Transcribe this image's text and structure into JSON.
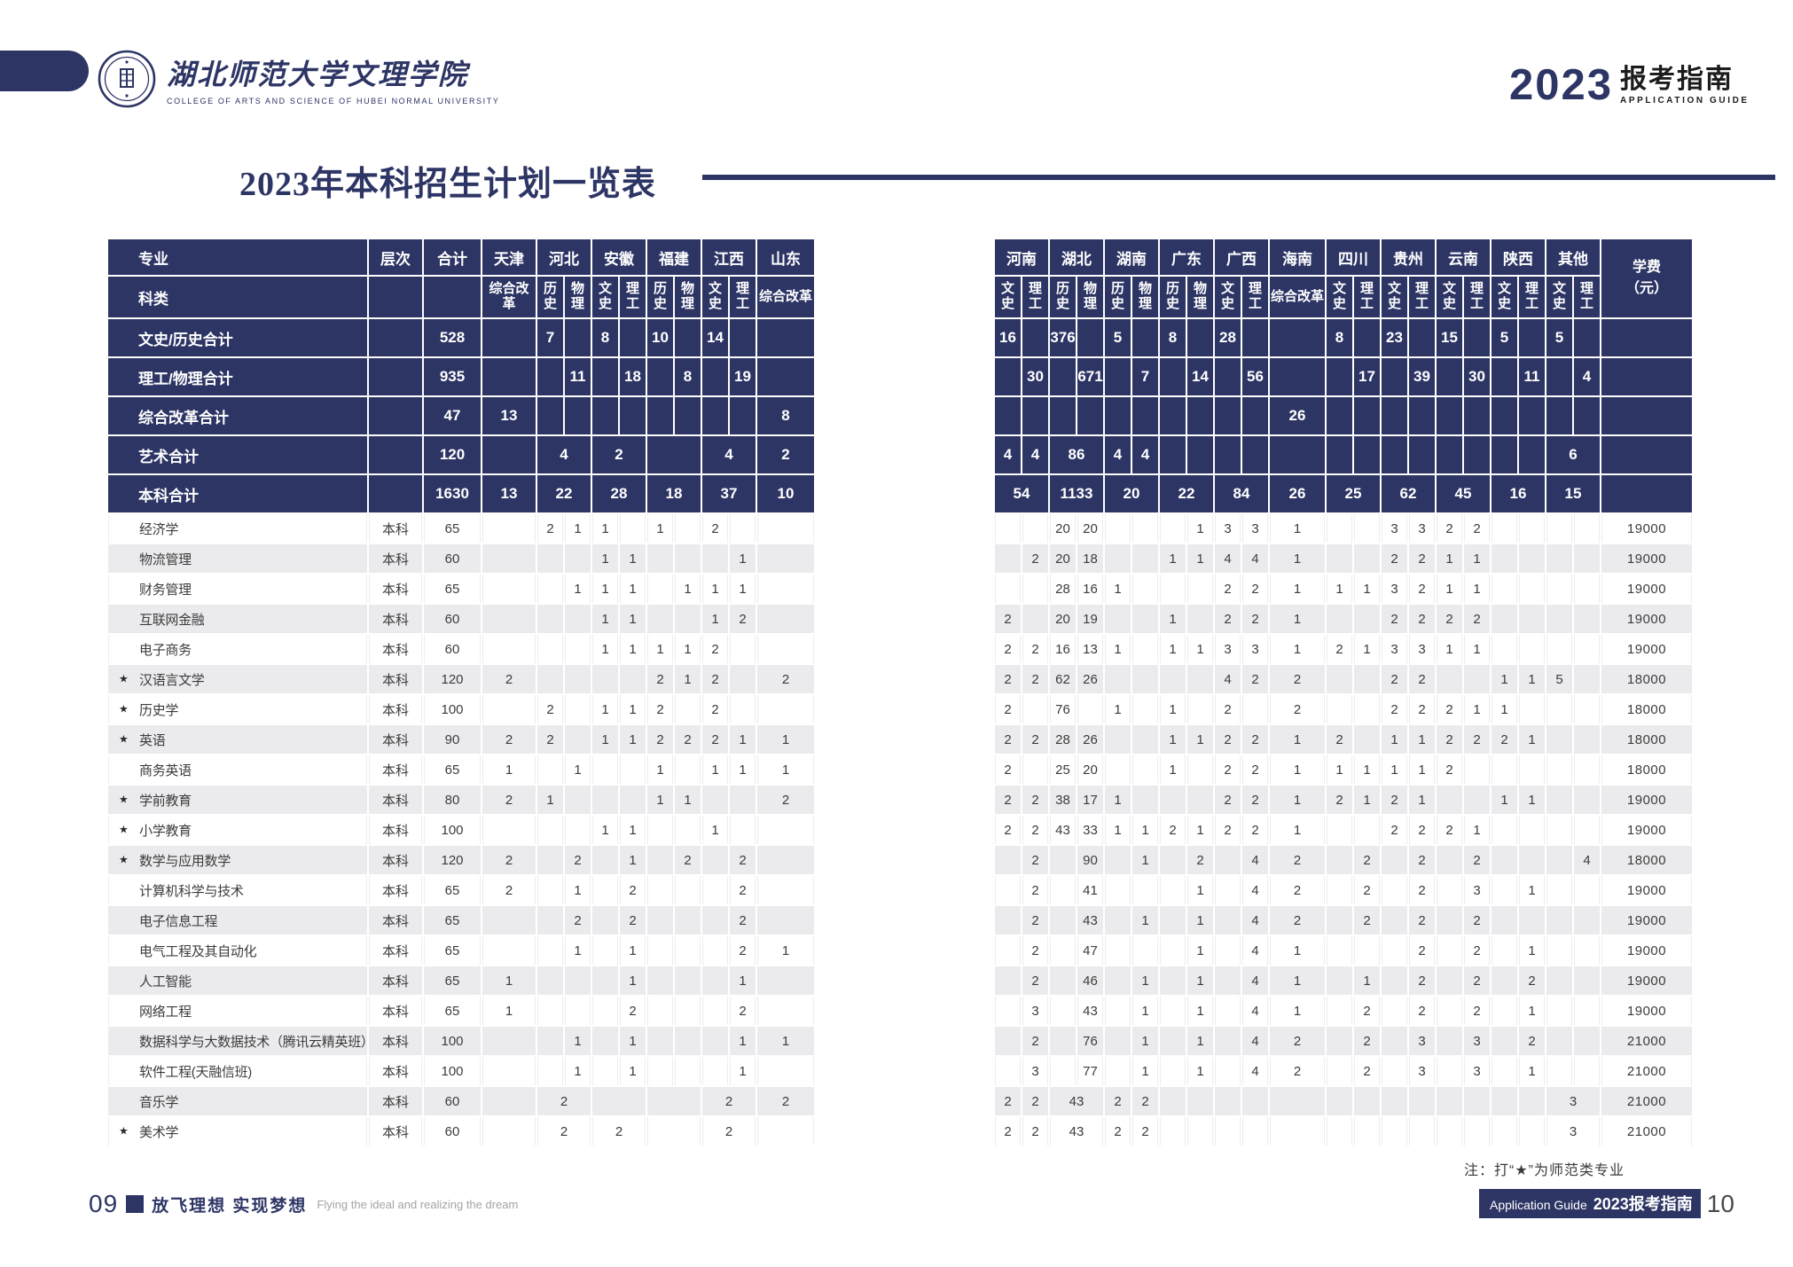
{
  "colors": {
    "navy": "#2d3565",
    "row_gray": "#ebebee",
    "row_white": "#ffffff"
  },
  "header": {
    "logo_cn": "湖北师范大学文理学院",
    "logo_en": "COLLEGE OF ARTS AND SCIENCE OF HUBEI NORMAL UNIVERSITY",
    "year": "2023",
    "guide_cn": "报考指南",
    "guide_en": "APPLICATION  GUIDE"
  },
  "title": {
    "text": "2023年本科招生计划一览表"
  },
  "left_table": {
    "major_header": "专业",
    "category_header": "科类",
    "level_header": "层次",
    "total_header": "合计",
    "provinces": [
      {
        "name": "天津",
        "cols": [
          "综合改革"
        ]
      },
      {
        "name": "河北",
        "cols": [
          "历史",
          "物理"
        ]
      },
      {
        "name": "安徽",
        "cols": [
          "文史",
          "理工"
        ]
      },
      {
        "name": "福建",
        "cols": [
          "历史",
          "物理"
        ]
      },
      {
        "name": "江西",
        "cols": [
          "文史",
          "理工"
        ]
      },
      {
        "name": "山东",
        "cols": [
          "综合改革"
        ]
      }
    ],
    "summary_rows": [
      {
        "label": "文史/历史合计",
        "total": "528",
        "cells": [
          "",
          "7",
          "",
          "8",
          "",
          "10",
          "",
          "14",
          "",
          ""
        ]
      },
      {
        "label": "理工/物理合计",
        "total": "935",
        "cells": [
          "",
          "",
          "11",
          "",
          "18",
          "",
          "8",
          "",
          "19",
          ""
        ]
      },
      {
        "label": "综合改革合计",
        "total": "47",
        "cells": [
          "13",
          "",
          "",
          "",
          "",
          "",
          "",
          "",
          "",
          "8"
        ]
      },
      {
        "label": "艺术合计",
        "total": "120",
        "cells": [
          "",
          [
            "4",
            2
          ],
          [
            "2",
            2
          ],
          [
            "",
            2
          ],
          [
            "4",
            2
          ],
          "2"
        ]
      },
      {
        "label": "本科合计",
        "total": "1630",
        "cells": [
          "13",
          [
            "22",
            2
          ],
          [
            "28",
            2
          ],
          [
            "18",
            2
          ],
          [
            "37",
            2
          ],
          "10"
        ]
      }
    ]
  },
  "right_table": {
    "provinces": [
      {
        "name": "河南",
        "cols": [
          "文史",
          "理工"
        ]
      },
      {
        "name": "湖北",
        "cols": [
          "历史",
          "物理"
        ]
      },
      {
        "name": "湖南",
        "cols": [
          "历史",
          "物理"
        ]
      },
      {
        "name": "广东",
        "cols": [
          "历史",
          "物理"
        ]
      },
      {
        "name": "广西",
        "cols": [
          "文史",
          "理工"
        ]
      },
      {
        "name": "海南",
        "cols": [
          "综合改革"
        ]
      },
      {
        "name": "四川",
        "cols": [
          "文史",
          "理工"
        ]
      },
      {
        "name": "贵州",
        "cols": [
          "文史",
          "理工"
        ]
      },
      {
        "name": "云南",
        "cols": [
          "文史",
          "理工"
        ]
      },
      {
        "name": "陕西",
        "cols": [
          "文史",
          "理工"
        ]
      },
      {
        "name": "其他",
        "cols": [
          "文史",
          "理工"
        ]
      }
    ],
    "fee_header": [
      "学费",
      "（元）"
    ],
    "summary_rows": [
      {
        "cells": [
          "16",
          "",
          "376",
          "",
          "5",
          "",
          "8",
          "",
          "28",
          "",
          "",
          "8",
          "",
          "23",
          "",
          "15",
          "",
          "5",
          "",
          "5",
          ""
        ],
        "fee": ""
      },
      {
        "cells": [
          "",
          "30",
          "",
          "671",
          "",
          "7",
          "",
          "14",
          "",
          "56",
          "",
          "",
          "17",
          "",
          "39",
          "",
          "30",
          "",
          "11",
          "",
          "4"
        ],
        "fee": ""
      },
      {
        "cells": [
          "",
          "",
          "",
          "",
          "",
          "",
          "",
          "",
          "",
          "",
          "26",
          "",
          "",
          "",
          "",
          "",
          "",
          "",
          "",
          "",
          ""
        ],
        "fee": ""
      },
      {
        "cells": [
          "4",
          "4",
          [
            "86",
            2
          ],
          "4",
          "4",
          "",
          "",
          "",
          "",
          "",
          "",
          "",
          "",
          "",
          "",
          "",
          "",
          "",
          [
            "6",
            2
          ]
        ],
        "fee": ""
      },
      {
        "cells": [
          [
            "54",
            2
          ],
          [
            "1133",
            2
          ],
          [
            "20",
            2
          ],
          [
            "22",
            2
          ],
          [
            "84",
            2
          ],
          "26",
          [
            "25",
            2
          ],
          [
            "62",
            2
          ],
          [
            "45",
            2
          ],
          [
            "16",
            2
          ],
          [
            "15",
            2
          ]
        ],
        "fee": ""
      }
    ]
  },
  "majors": [
    {
      "star": false,
      "name": "经济学",
      "level": "本科",
      "total": "65",
      "left": [
        "",
        "2",
        "1",
        "1",
        "",
        "1",
        "",
        "2",
        "",
        ""
      ],
      "right": [
        "",
        "",
        "20",
        "20",
        "",
        "",
        "",
        "1",
        "3",
        "3",
        "1",
        "",
        "",
        "3",
        "3",
        "2",
        "2",
        "",
        "",
        "",
        ""
      ],
      "fee": "19000"
    },
    {
      "star": false,
      "name": "物流管理",
      "level": "本科",
      "total": "60",
      "left": [
        "",
        "",
        "",
        "1",
        "1",
        "",
        "",
        "",
        "1",
        ""
      ],
      "right": [
        "",
        "2",
        "20",
        "18",
        "",
        "",
        "1",
        "1",
        "4",
        "4",
        "1",
        "",
        "",
        "2",
        "2",
        "1",
        "1",
        "",
        "",
        "",
        ""
      ],
      "fee": "19000"
    },
    {
      "star": false,
      "name": "财务管理",
      "level": "本科",
      "total": "65",
      "left": [
        "",
        "",
        "1",
        "1",
        "1",
        "",
        "1",
        "1",
        "1",
        ""
      ],
      "right": [
        "",
        "",
        "28",
        "16",
        "1",
        "",
        "",
        "",
        "2",
        "2",
        "1",
        "1",
        "1",
        "3",
        "2",
        "1",
        "1",
        "",
        "",
        "",
        ""
      ],
      "fee": "19000"
    },
    {
      "star": false,
      "name": "互联网金融",
      "level": "本科",
      "total": "60",
      "left": [
        "",
        "",
        "",
        "1",
        "1",
        "",
        "",
        "1",
        "2",
        ""
      ],
      "right": [
        "2",
        "",
        "20",
        "19",
        "",
        "",
        "1",
        "",
        "2",
        "2",
        "1",
        "",
        "",
        "2",
        "2",
        "2",
        "2",
        "",
        "",
        "",
        ""
      ],
      "fee": "19000"
    },
    {
      "star": false,
      "name": "电子商务",
      "level": "本科",
      "total": "60",
      "left": [
        "",
        "",
        "",
        "1",
        "1",
        "1",
        "1",
        "2",
        "",
        ""
      ],
      "right": [
        "2",
        "2",
        "16",
        "13",
        "1",
        "",
        "1",
        "1",
        "3",
        "3",
        "1",
        "2",
        "1",
        "3",
        "3",
        "1",
        "1",
        "",
        "",
        "",
        ""
      ],
      "fee": "19000"
    },
    {
      "star": true,
      "name": "汉语言文学",
      "level": "本科",
      "total": "120",
      "left": [
        "2",
        "",
        "",
        "",
        "",
        "2",
        "1",
        "2",
        "",
        "2"
      ],
      "right": [
        "2",
        "2",
        "62",
        "26",
        "",
        "",
        "",
        "",
        "4",
        "2",
        "2",
        "",
        "",
        "2",
        "2",
        "",
        "",
        "1",
        "1",
        "5",
        ""
      ],
      "fee": "18000"
    },
    {
      "star": true,
      "name": "历史学",
      "level": "本科",
      "total": "100",
      "left": [
        "",
        "2",
        "",
        "1",
        "1",
        "2",
        "",
        "2",
        "",
        ""
      ],
      "right": [
        "2",
        "",
        "76",
        "",
        "1",
        "",
        "1",
        "",
        "2",
        "",
        "2",
        "",
        "",
        "2",
        "2",
        "2",
        "1",
        "1",
        "",
        "",
        ""
      ],
      "fee": "18000"
    },
    {
      "star": true,
      "name": "英语",
      "level": "本科",
      "total": "90",
      "left": [
        "2",
        "2",
        "",
        "1",
        "1",
        "2",
        "2",
        "2",
        "1",
        "1"
      ],
      "right": [
        "2",
        "2",
        "28",
        "26",
        "",
        "",
        "1",
        "1",
        "2",
        "2",
        "1",
        "2",
        "",
        "1",
        "1",
        "2",
        "2",
        "2",
        "1",
        "",
        ""
      ],
      "fee": "18000"
    },
    {
      "star": false,
      "name": "商务英语",
      "level": "本科",
      "total": "65",
      "left": [
        "1",
        "",
        "1",
        "",
        "",
        "1",
        "",
        "1",
        "1",
        "1"
      ],
      "right": [
        "2",
        "",
        "25",
        "20",
        "",
        "",
        "1",
        "",
        "2",
        "2",
        "1",
        "1",
        "1",
        "1",
        "1",
        "2",
        "",
        "",
        "",
        "",
        ""
      ],
      "fee": "18000"
    },
    {
      "star": true,
      "name": "学前教育",
      "level": "本科",
      "total": "80",
      "left": [
        "2",
        "1",
        "",
        "",
        "",
        "1",
        "1",
        "",
        "",
        "2"
      ],
      "right": [
        "2",
        "2",
        "38",
        "17",
        "1",
        "",
        "",
        "",
        "2",
        "2",
        "1",
        "2",
        "1",
        "2",
        "1",
        "",
        "",
        "1",
        "1",
        "",
        ""
      ],
      "fee": "19000"
    },
    {
      "star": true,
      "name": "小学教育",
      "level": "本科",
      "total": "100",
      "left": [
        "",
        "",
        "",
        "1",
        "1",
        "",
        "",
        "1",
        "",
        ""
      ],
      "right": [
        "2",
        "2",
        "43",
        "33",
        "1",
        "1",
        "2",
        "1",
        "2",
        "2",
        "1",
        "",
        "",
        "2",
        "2",
        "2",
        "1",
        "",
        "",
        "",
        ""
      ],
      "fee": "19000"
    },
    {
      "star": true,
      "name": "数学与应用数学",
      "level": "本科",
      "total": "120",
      "left": [
        "2",
        "",
        "2",
        "",
        "1",
        "",
        "2",
        "",
        "2",
        ""
      ],
      "right": [
        "",
        "2",
        "",
        "90",
        "",
        "1",
        "",
        "2",
        "",
        "4",
        "2",
        "",
        "2",
        "",
        "2",
        "",
        "2",
        "",
        "",
        "",
        "4"
      ],
      "fee": "18000"
    },
    {
      "star": false,
      "name": "计算机科学与技术",
      "level": "本科",
      "total": "65",
      "left": [
        "2",
        "",
        "1",
        "",
        "2",
        "",
        "",
        "",
        "2",
        ""
      ],
      "right": [
        "",
        "2",
        "",
        "41",
        "",
        "",
        "",
        "1",
        "",
        "4",
        "2",
        "",
        "2",
        "",
        "2",
        "",
        "3",
        "",
        "1",
        "",
        ""
      ],
      "fee": "19000"
    },
    {
      "star": false,
      "name": "电子信息工程",
      "level": "本科",
      "total": "65",
      "left": [
        "",
        "",
        "2",
        "",
        "2",
        "",
        "",
        "",
        "2",
        ""
      ],
      "right": [
        "",
        "2",
        "",
        "43",
        "",
        "1",
        "",
        "1",
        "",
        "4",
        "2",
        "",
        "2",
        "",
        "2",
        "",
        "2",
        "",
        "",
        "",
        ""
      ],
      "fee": "19000"
    },
    {
      "star": false,
      "name": "电气工程及其自动化",
      "level": "本科",
      "total": "65",
      "left": [
        "",
        "",
        "1",
        "",
        "1",
        "",
        "",
        "",
        "2",
        "1"
      ],
      "right": [
        "",
        "2",
        "",
        "47",
        "",
        "",
        "",
        "1",
        "",
        "4",
        "1",
        "",
        "",
        "",
        "2",
        "",
        "2",
        "",
        "1",
        "",
        ""
      ],
      "fee": "19000"
    },
    {
      "star": false,
      "name": "人工智能",
      "level": "本科",
      "total": "65",
      "left": [
        "1",
        "",
        "",
        "",
        "1",
        "",
        "",
        "",
        "1",
        ""
      ],
      "right": [
        "",
        "2",
        "",
        "46",
        "",
        "1",
        "",
        "1",
        "",
        "4",
        "1",
        "",
        "1",
        "",
        "2",
        "",
        "2",
        "",
        "2",
        "",
        ""
      ],
      "fee": "19000"
    },
    {
      "star": false,
      "name": "网络工程",
      "level": "本科",
      "total": "65",
      "left": [
        "1",
        "",
        "",
        "",
        "2",
        "",
        "",
        "",
        "2",
        ""
      ],
      "right": [
        "",
        "3",
        "",
        "43",
        "",
        "1",
        "",
        "1",
        "",
        "4",
        "1",
        "",
        "2",
        "",
        "2",
        "",
        "2",
        "",
        "1",
        "",
        ""
      ],
      "fee": "19000"
    },
    {
      "star": false,
      "name": "数据科学与大数据技术（腾讯云精英班）",
      "level": "本科",
      "total": "100",
      "left": [
        "",
        "",
        "1",
        "",
        "1",
        "",
        "",
        "",
        "1",
        "1"
      ],
      "right": [
        "",
        "2",
        "",
        "76",
        "",
        "1",
        "",
        "1",
        "",
        "4",
        "2",
        "",
        "2",
        "",
        "3",
        "",
        "3",
        "",
        "2",
        "",
        ""
      ],
      "fee": "21000"
    },
    {
      "star": false,
      "name": "软件工程(天融信班)",
      "level": "本科",
      "total": "100",
      "left": [
        "",
        "",
        "1",
        "",
        "1",
        "",
        "",
        "",
        "1",
        ""
      ],
      "right": [
        "",
        "3",
        "",
        "77",
        "",
        "1",
        "",
        "1",
        "",
        "4",
        "2",
        "",
        "2",
        "",
        "3",
        "",
        "3",
        "",
        "1",
        "",
        ""
      ],
      "fee": "21000"
    },
    {
      "star": false,
      "name": "音乐学",
      "level": "本科",
      "total": "60",
      "left": [
        "",
        [
          "2",
          2
        ],
        [
          "",
          2
        ],
        [
          "",
          2
        ],
        [
          "2",
          2
        ],
        "2"
      ],
      "right": [
        "2",
        "2",
        [
          "43",
          2
        ],
        "2",
        "2",
        "",
        "",
        "",
        "",
        "",
        "",
        "",
        "",
        "",
        "",
        "",
        "",
        "",
        [
          "3",
          2
        ]
      ],
      "fee": "21000"
    },
    {
      "star": true,
      "name": "美术学",
      "level": "本科",
      "total": "60",
      "left": [
        "",
        [
          "2",
          2
        ],
        [
          "2",
          2
        ],
        [
          "",
          2
        ],
        [
          "2",
          2
        ],
        ""
      ],
      "right": [
        "2",
        "2",
        [
          "43",
          2
        ],
        "2",
        "2",
        "",
        "",
        "",
        "",
        "",
        "",
        "",
        "",
        "",
        "",
        "",
        "",
        "",
        [
          "3",
          2
        ]
      ],
      "fee": "21000"
    }
  ],
  "note": {
    "text": "注：打“★”为师范类专业"
  },
  "footer": {
    "page_left": "09",
    "slogan_cn": "放飞理想  实现梦想",
    "slogan_en": "Flying the ideal and realizing the dream",
    "right_en": "Application Guide",
    "right_cn": "2023报考指南",
    "page_right": "10"
  }
}
